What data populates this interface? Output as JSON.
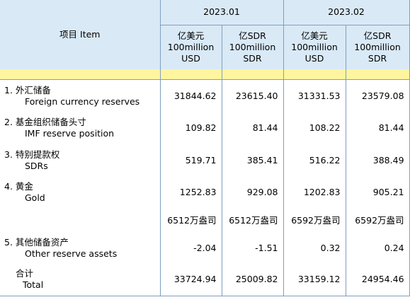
{
  "header": {
    "item_label": "项目  Item",
    "periods": [
      "2023.01",
      "2023.02"
    ],
    "units": [
      {
        "zh": "亿美元",
        "en1": "100million",
        "en2": "USD"
      },
      {
        "zh": "亿SDR",
        "en1": "100million",
        "en2": "SDR"
      },
      {
        "zh": "亿美元",
        "en1": "100million",
        "en2": "USD"
      },
      {
        "zh": "亿SDR",
        "en1": "100million",
        "en2": "SDR"
      }
    ]
  },
  "rows": [
    {
      "zh": "1.  外汇储备",
      "en": "Foreign currency reserves",
      "values": [
        "31844.62",
        "23615.40",
        "31331.53",
        "23579.08"
      ]
    },
    {
      "zh": "2.  基金组织储备头寸",
      "en": "IMF reserve position",
      "values": [
        "109.82",
        "81.44",
        "108.22",
        "81.44"
      ]
    },
    {
      "zh": "3.  特别提款权",
      "en": "SDRs",
      "values": [
        "519.71",
        "385.41",
        "516.22",
        "388.49"
      ]
    },
    {
      "zh": "4.  黄金",
      "en": "Gold",
      "values": [
        "1252.83",
        "929.08",
        "1202.83",
        "905.21"
      ]
    },
    {
      "zh": "",
      "en": "",
      "values": [
        "6512万盎司",
        "6512万盎司",
        "6592万盎司",
        "6592万盎司"
      ]
    },
    {
      "zh": "5.  其他储备资产",
      "en": "Other reserve assets",
      "values": [
        "-2.04",
        "-1.51",
        "0.32",
        "0.24"
      ]
    },
    {
      "zh": "合计",
      "en": "Total",
      "values": [
        "33724.94",
        "25009.82",
        "33159.12",
        "24954.46"
      ]
    }
  ]
}
